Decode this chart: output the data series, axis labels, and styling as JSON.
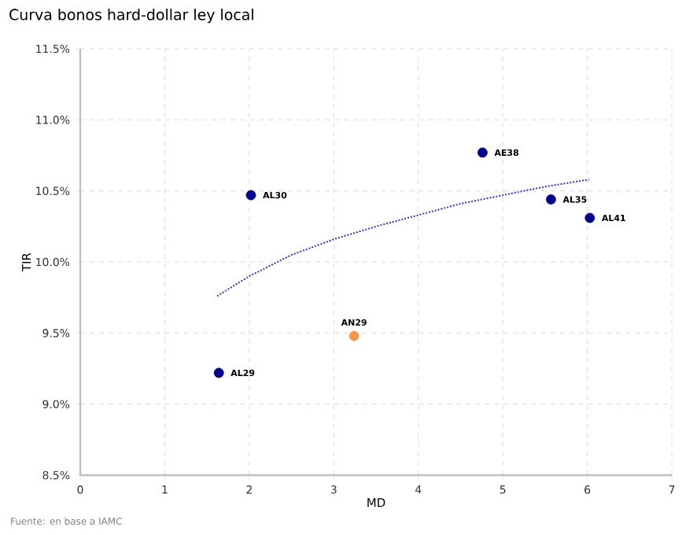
{
  "chart_data": {
    "type": "scatter",
    "title": "Curva bonos hard-dollar ley local",
    "xlabel": "MD",
    "ylabel": "TIR",
    "series": [
      {
        "color": "#00008b",
        "x": [
          1.64,
          2.02,
          4.76,
          5.57,
          6.03
        ],
        "values": [
          9.22,
          10.47,
          10.77,
          10.44,
          10.31
        ]
      },
      {
        "color": "#f79646",
        "x": [
          3.24
        ],
        "values": [
          9.48
        ]
      },
      {
        "type": "line",
        "color": "#3333cc",
        "line_style": "dotted",
        "x": [
          1.62,
          2,
          2.5,
          3,
          3.5,
          4,
          4.5,
          5,
          5.5,
          6.02
        ],
        "values": [
          9.76,
          9.9,
          10.05,
          10.16,
          10.25,
          10.33,
          10.41,
          10.47,
          10.53,
          10.58
        ]
      }
    ],
    "grid": true,
    "xlim": [
      0,
      7
    ],
    "xticks": [
      0,
      1,
      2,
      3,
      4,
      5,
      6,
      7
    ],
    "ylim": [
      8.5,
      11.5
    ],
    "yticks": [
      {
        "value": 8.5,
        "label": "8.5%"
      },
      {
        "value": 9,
        "label": "9.0%"
      },
      {
        "value": 9.5,
        "label": "9.5%"
      },
      {
        "value": 10,
        "label": "10.0%"
      },
      {
        "value": 10.5,
        "label": "10.5%"
      },
      {
        "value": 11,
        "label": "11.0%"
      },
      {
        "value": 11.5,
        "label": "11.5%"
      }
    ],
    "annotations": [
      {
        "text": "AL29",
        "x": 1.64,
        "y": 9.22
      },
      {
        "text": "AL30",
        "x": 2.02,
        "y": 10.47
      },
      {
        "text": "AN29",
        "x": 3.24,
        "y": 9.48
      },
      {
        "text": "AE38",
        "x": 4.76,
        "y": 10.77
      },
      {
        "text": "AL35",
        "x": 5.57,
        "y": 10.44
      },
      {
        "text": "AL41",
        "x": 6.03,
        "y": 10.31
      },
      "Fuente: en base a IAMC"
    ]
  }
}
